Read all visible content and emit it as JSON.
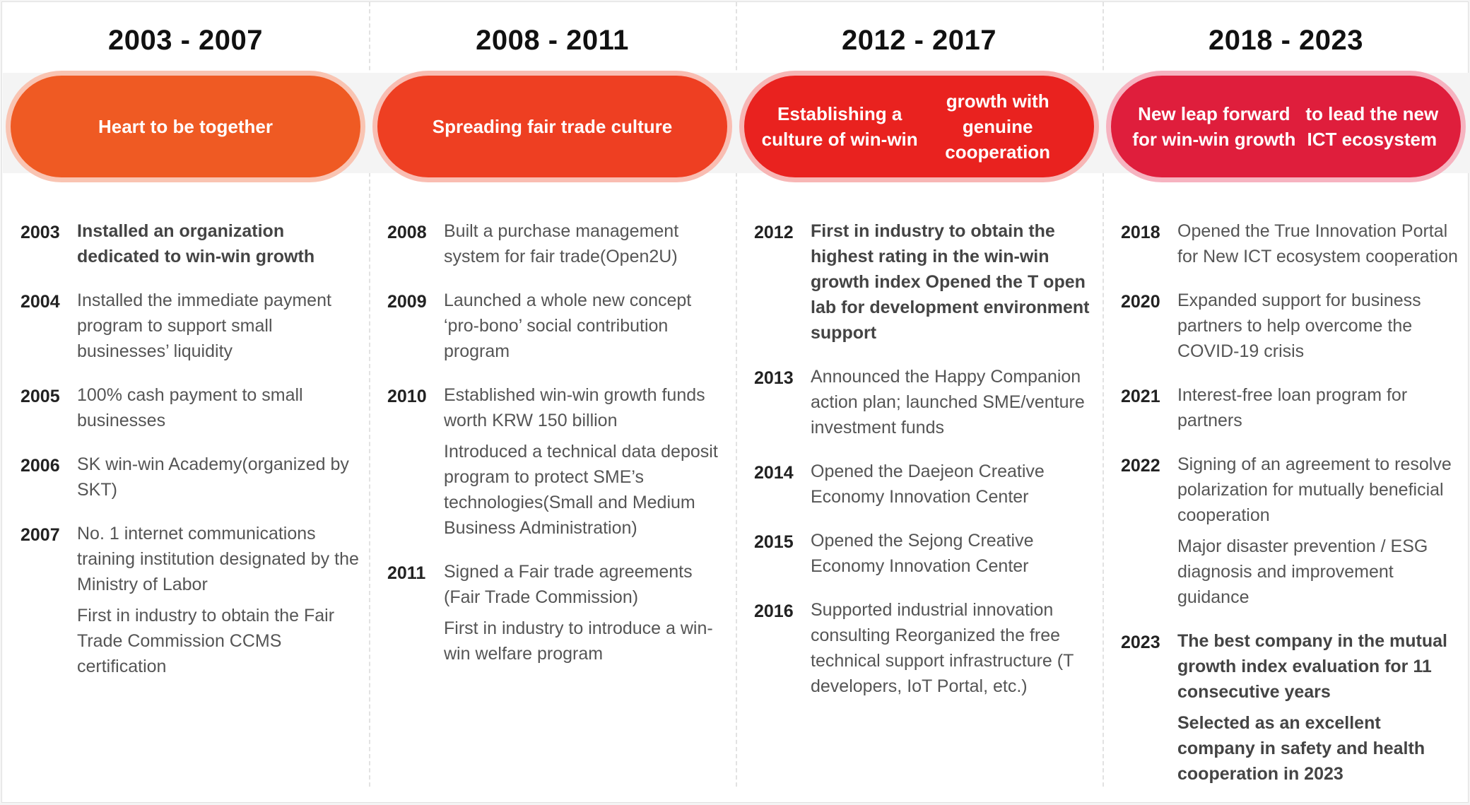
{
  "columns": [
    {
      "period": "2003 - 2007",
      "title": [
        "Heart to be together"
      ],
      "color": "#ef5a23",
      "ring": "#f9c4b2",
      "entries": [
        {
          "year": "2003",
          "items": [
            {
              "text": "Installed an organization dedicated to win-win growth",
              "bold": true
            }
          ]
        },
        {
          "year": "2004",
          "items": [
            {
              "text": "Installed the immediate payment program to support small businesses’ liquidity",
              "bold": false
            }
          ]
        },
        {
          "year": "2005",
          "items": [
            {
              "text": "100% cash payment to small businesses",
              "bold": false
            }
          ]
        },
        {
          "year": "2006",
          "items": [
            {
              "text": "SK win-win Academy(organized by SKT)",
              "bold": false
            }
          ]
        },
        {
          "year": "2007",
          "items": [
            {
              "text": "No. 1 internet communications training institution designated by the Ministry of Labor",
              "bold": false
            },
            {
              "text": "First in industry to obtain the Fair Trade Commission CCMS certification",
              "bold": false
            }
          ]
        }
      ]
    },
    {
      "period": "2008 - 2011",
      "title": [
        "Spreading fair trade culture"
      ],
      "color": "#ee3f22",
      "ring": "#f9bdb2",
      "entries": [
        {
          "year": "2008",
          "items": [
            {
              "text": "Built a purchase management system for fair trade(Open2U)",
              "bold": false
            }
          ]
        },
        {
          "year": "2009",
          "items": [
            {
              "text": "Launched a whole new concept ‘pro-bono’ social contribution program",
              "bold": false
            }
          ]
        },
        {
          "year": "2010",
          "items": [
            {
              "text": "Established win-win growth funds worth KRW 150 billion",
              "bold": false
            },
            {
              "text": "Introduced a technical data deposit program to protect SME’s technologies(Small and Medium Business Administration)",
              "bold": false
            }
          ]
        },
        {
          "year": "2011",
          "items": [
            {
              "text": "Signed a Fair trade agreements (Fair Trade Commission)",
              "bold": false
            },
            {
              "text": "First in industry to introduce a win-win welfare program",
              "bold": false
            }
          ]
        }
      ]
    },
    {
      "period": "2012 - 2017",
      "title": [
        "Establishing a culture of win-win",
        "growth with genuine cooperation"
      ],
      "color": "#e9221f",
      "ring": "#f7b6b5",
      "entries": [
        {
          "year": "2012",
          "items": [
            {
              "text": "First in industry to obtain the highest rating in the win-win growth index Opened the T open lab for development environment support",
              "bold": true
            }
          ]
        },
        {
          "year": "2013",
          "items": [
            {
              "text": "Announced the Happy Companion action plan; launched SME/venture investment funds",
              "bold": false
            }
          ]
        },
        {
          "year": "2014",
          "items": [
            {
              "text": "Opened the Daejeon Creative Economy Innovation Center",
              "bold": false
            }
          ]
        },
        {
          "year": "2015",
          "items": [
            {
              "text": "Opened the Sejong Creative Economy Innovation Center",
              "bold": false
            }
          ]
        },
        {
          "year": "2016",
          "items": [
            {
              "text": "Supported industrial innovation consulting Reorganized the free technical support infrastructure (T developers, IoT Portal, etc.)",
              "bold": false
            }
          ]
        }
      ]
    },
    {
      "period": "2018 - 2023",
      "title": [
        "New leap forward for win-win growth",
        "to lead the new ICT ecosystem"
      ],
      "color": "#df1e3c",
      "ring": "#f6b3c0",
      "entries": [
        {
          "year": "2018",
          "items": [
            {
              "text": "Opened the True Innovation Portal for New ICT ecosystem cooperation",
              "bold": false
            }
          ]
        },
        {
          "year": "2020",
          "items": [
            {
              "text": "Expanded support for business partners to help overcome the COVID-19 crisis",
              "bold": false
            }
          ]
        },
        {
          "year": "2021",
          "items": [
            {
              "text": "Interest-free loan program for partners",
              "bold": false
            }
          ]
        },
        {
          "year": "2022",
          "items": [
            {
              "text": "Signing of an agreement to resolve polarization for mutually beneficial cooperation",
              "bold": false
            },
            {
              "text": "Major disaster prevention / ESG diagnosis and improvement guidance",
              "bold": false
            }
          ]
        },
        {
          "year": "2023",
          "items": [
            {
              "text": "The best company in the mutual growth index evaluation for 11 consecutive years",
              "bold": true
            },
            {
              "text": "Selected as an excellent company in safety and health cooperation in 2023",
              "bold": true
            }
          ]
        }
      ]
    }
  ]
}
